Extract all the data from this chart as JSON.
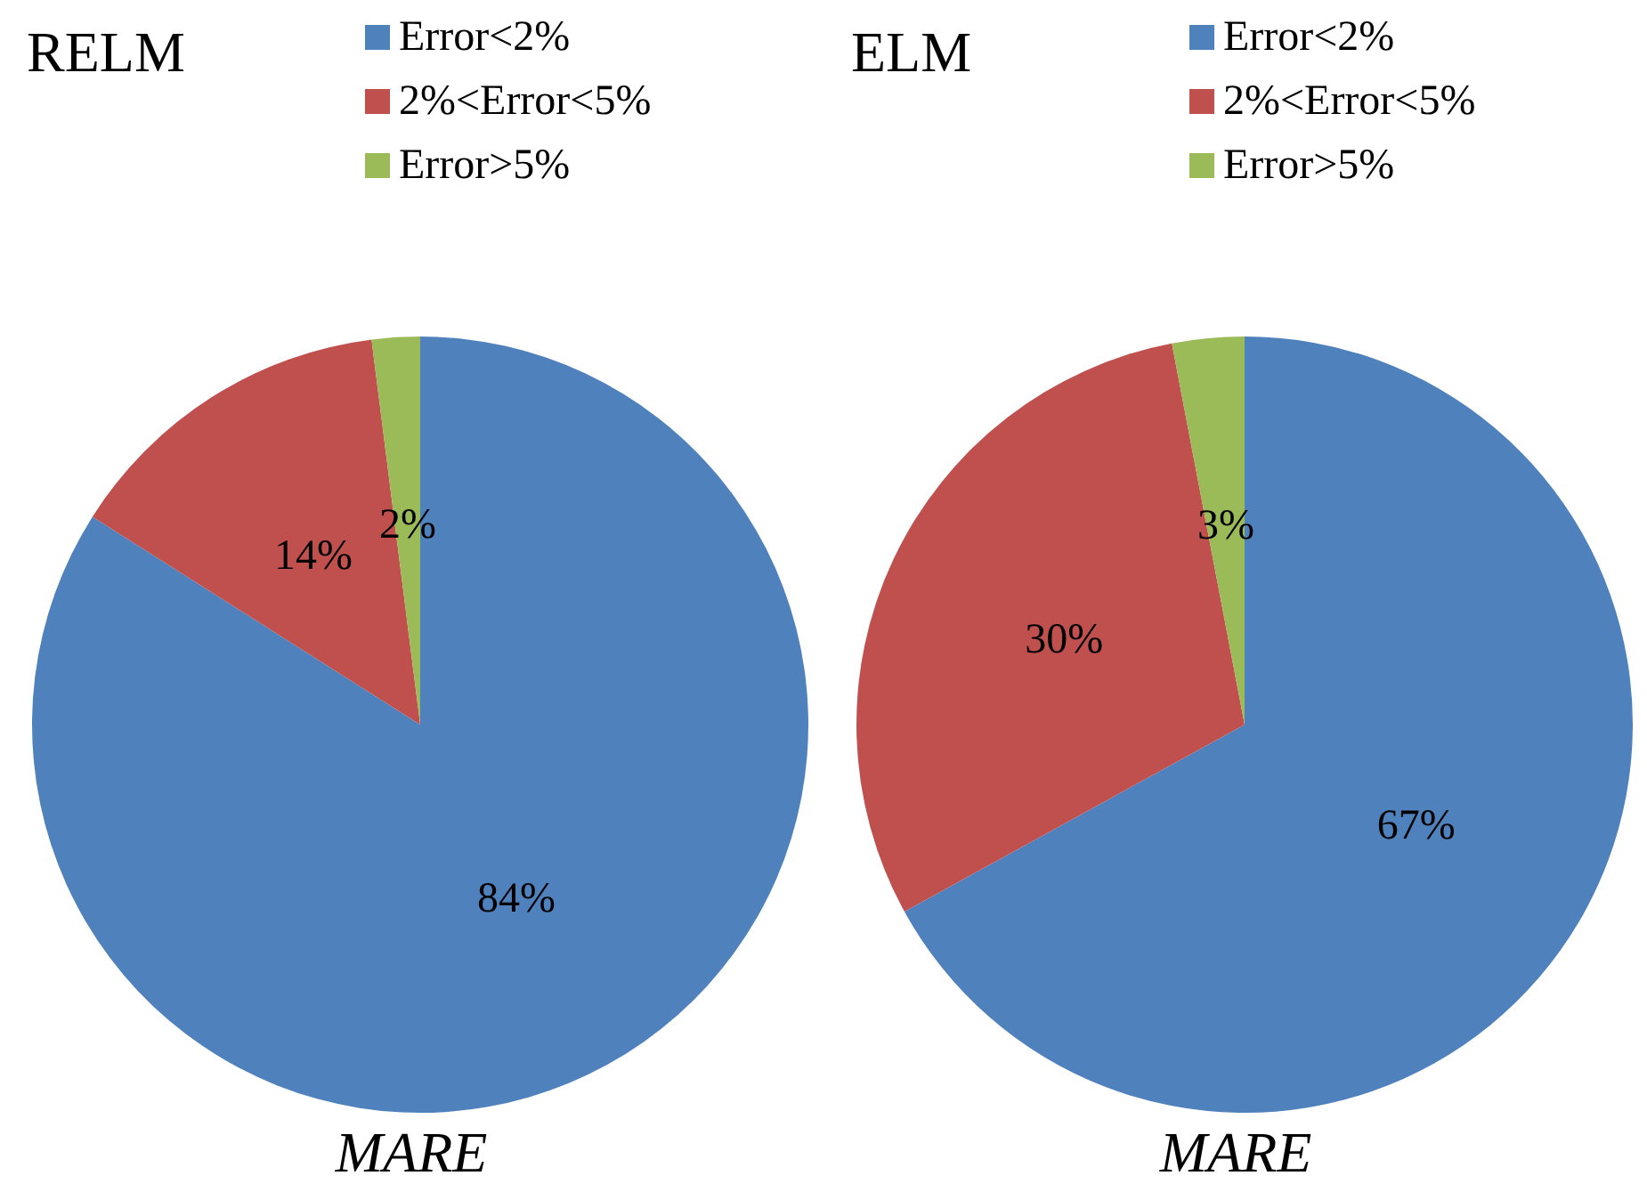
{
  "chart_data": [
    {
      "type": "pie",
      "title": "RELM",
      "xlabel": "MARE",
      "categories": [
        "Error<2%",
        "2%<Error<5%",
        "Error>5%"
      ],
      "values": [
        84,
        14,
        2
      ],
      "value_labels": [
        "84%",
        "14%",
        "2%"
      ],
      "colors": [
        "#4f81bd",
        "#c0504d",
        "#9bbb59"
      ],
      "legend": "top right"
    },
    {
      "type": "pie",
      "title": "ELM",
      "xlabel": "MARE",
      "categories": [
        "Error<2%",
        "2%<Error<5%",
        "Error>5%"
      ],
      "values": [
        67,
        30,
        3
      ],
      "value_labels": [
        "67%",
        "30%",
        "3%"
      ],
      "colors": [
        "#4f81bd",
        "#c0504d",
        "#9bbb59"
      ],
      "legend": "top right"
    }
  ]
}
